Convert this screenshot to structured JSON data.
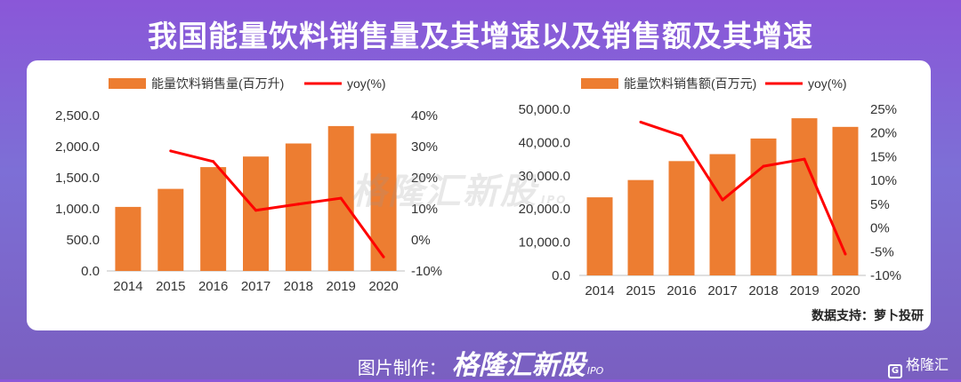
{
  "title": "我国能量饮料销售量及其增速以及销售额及其增速",
  "source": "数据支持：萝卜投研",
  "footer": {
    "prefix": "图片制作：",
    "brand": "格隆汇新股",
    "brand_sub": "IPO"
  },
  "watermark": {
    "text": "格隆汇新股",
    "sub": "IPO"
  },
  "corner_logo": "格隆汇",
  "colors": {
    "bar": "#ED7D31",
    "line": "#FF0000",
    "accent": "#8a57d8"
  },
  "chart_data": [
    {
      "type": "bar",
      "categories": [
        "2014",
        "2015",
        "2016",
        "2017",
        "2018",
        "2019",
        "2020"
      ],
      "series": [
        {
          "name": "能量饮料销售量(百万升)",
          "axis": "left",
          "values": [
            1030,
            1320,
            1670,
            1840,
            2050,
            2330,
            2210
          ]
        },
        {
          "name": "yoy(%)",
          "axis": "right",
          "kind": "line",
          "values": [
            null,
            28.6,
            25.2,
            9.5,
            11.5,
            13.4,
            -5.5
          ]
        }
      ],
      "yticks_left": [
        "2,500.0",
        "2,000.0",
        "1,500.0",
        "1,000.0",
        "500.0",
        "0.0"
      ],
      "yticks_right": [
        "40%",
        "30%",
        "20%",
        "10%",
        "0%",
        "-10%"
      ],
      "ylim_left": [
        0,
        2500
      ],
      "ylim_right": [
        -10,
        40
      ],
      "legend_position": "top"
    },
    {
      "type": "bar",
      "categories": [
        "2014",
        "2015",
        "2016",
        "2017",
        "2018",
        "2019",
        "2020"
      ],
      "series": [
        {
          "name": "能量饮料销售额(百万元)",
          "axis": "left",
          "values": [
            23500,
            28700,
            34400,
            36500,
            41200,
            47300,
            44700
          ]
        },
        {
          "name": "yoy(%)",
          "axis": "right",
          "kind": "line",
          "values": [
            null,
            22.3,
            19.4,
            5.9,
            13.0,
            14.5,
            -5.5
          ]
        }
      ],
      "yticks_left": [
        "50,000.0",
        "40,000.0",
        "30,000.0",
        "20,000.0",
        "10,000.0",
        "0.0"
      ],
      "yticks_right": [
        "25%",
        "20%",
        "15%",
        "10%",
        "5%",
        "0%",
        "-5%",
        "-10%"
      ],
      "ylim_left": [
        0,
        50000
      ],
      "ylim_right": [
        -10,
        25
      ],
      "legend_position": "top"
    }
  ]
}
